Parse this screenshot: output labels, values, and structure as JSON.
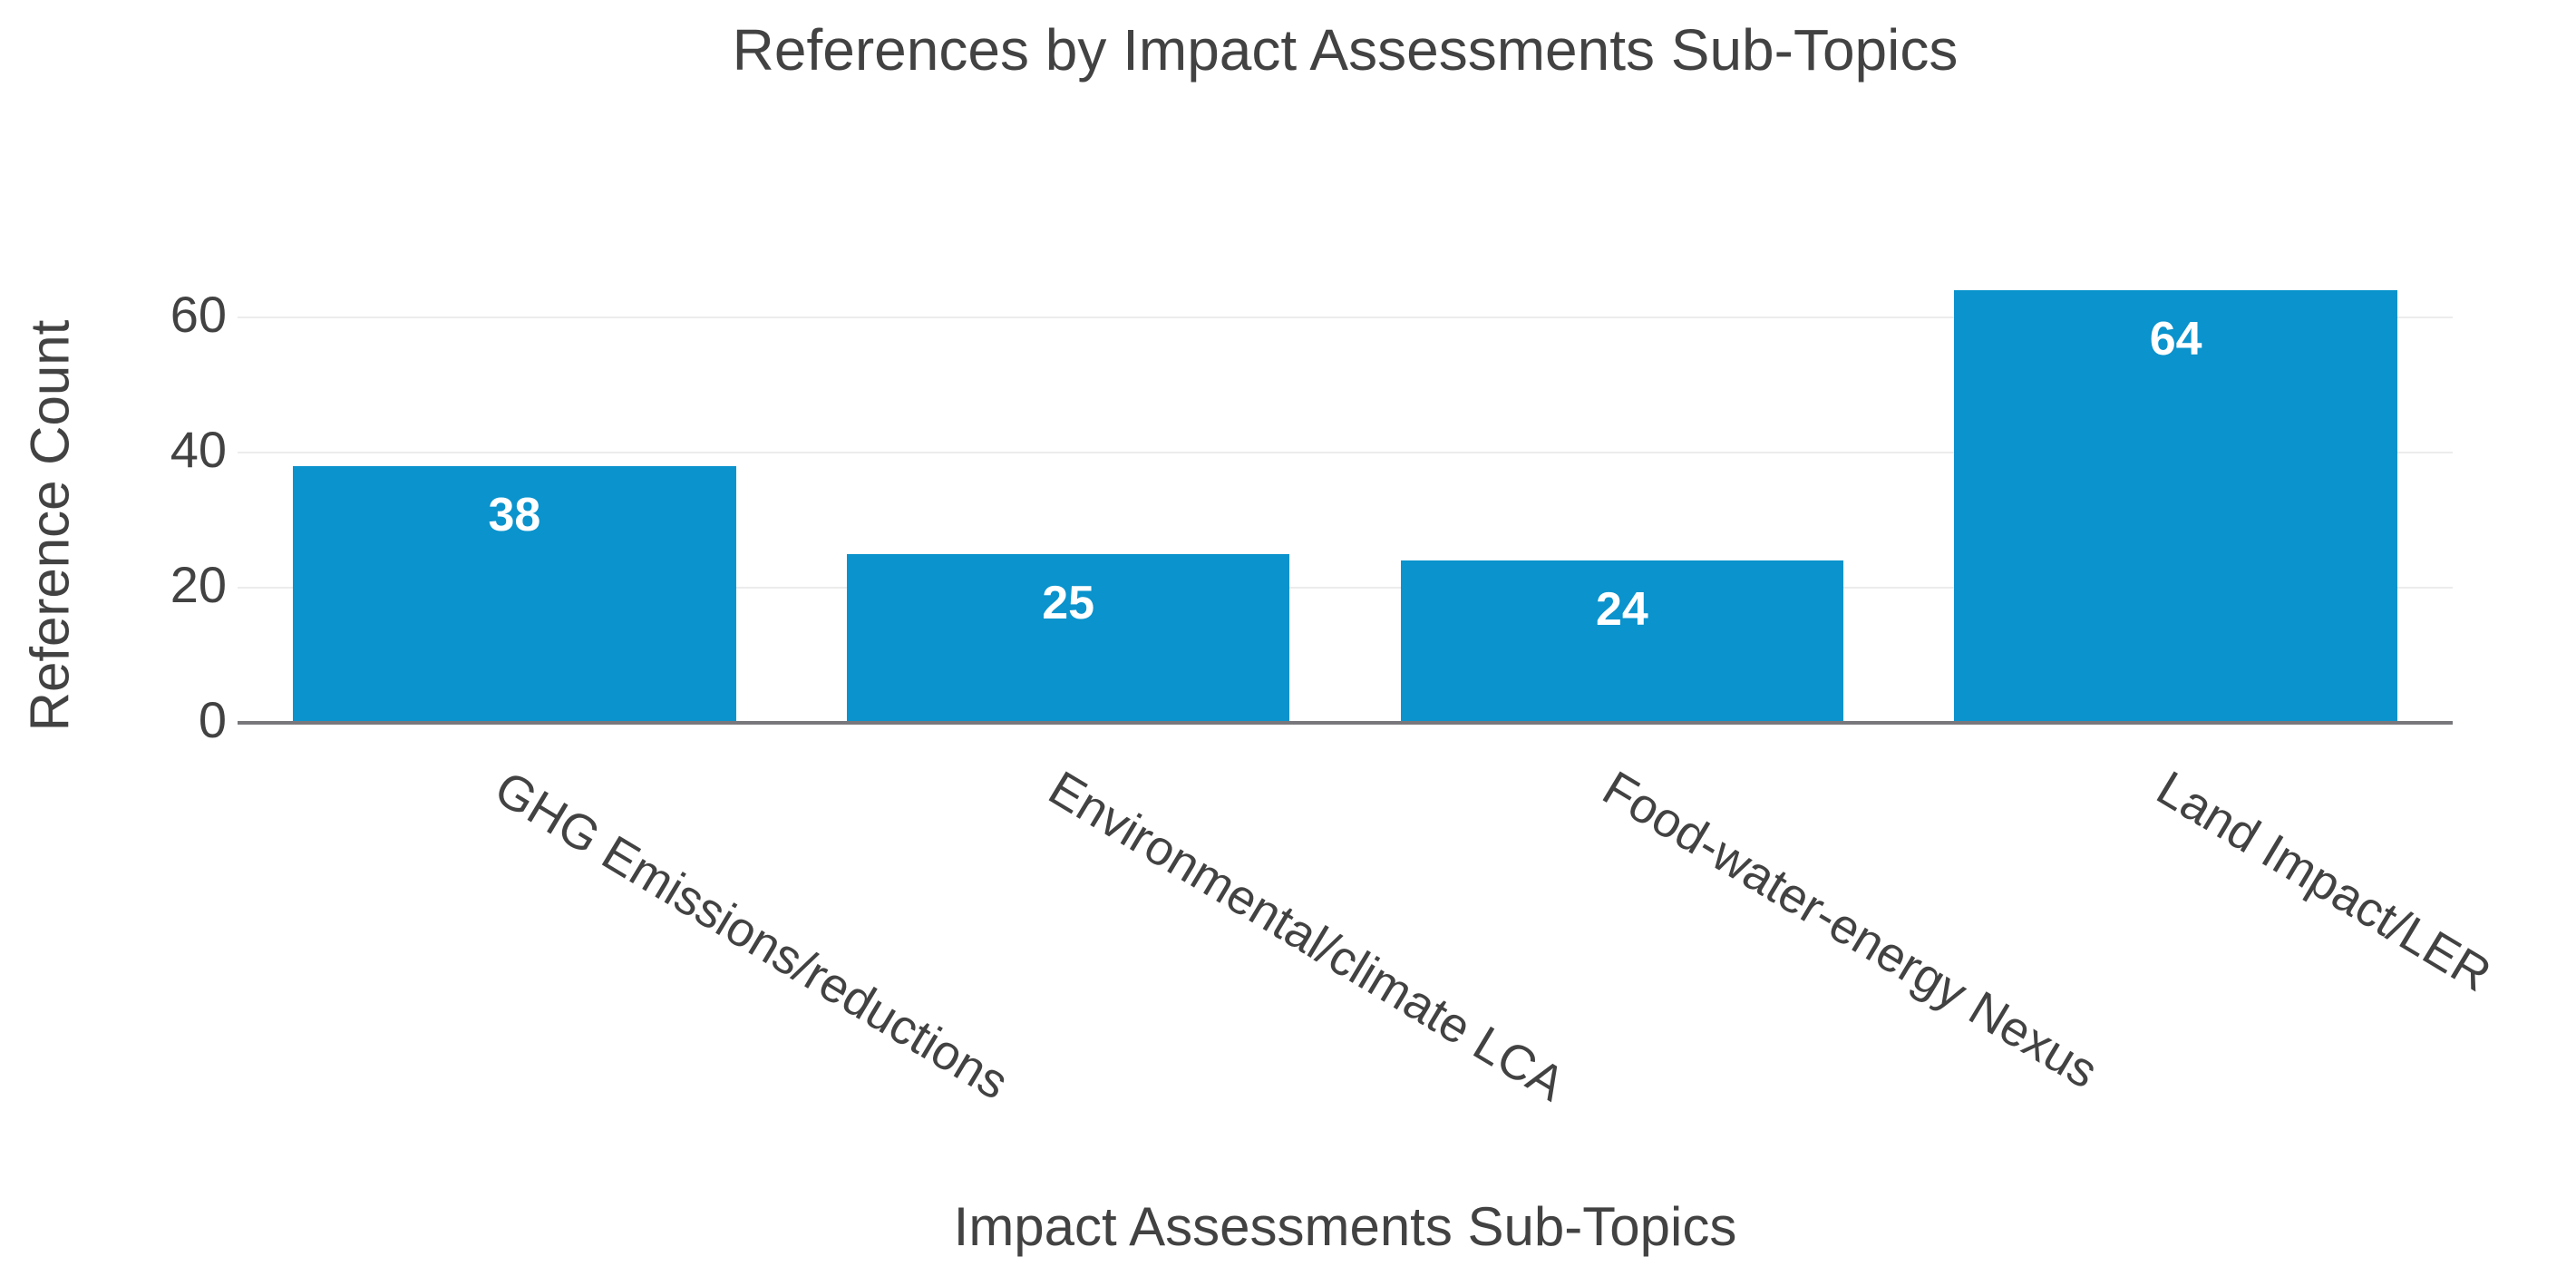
{
  "chart_data": {
    "type": "bar",
    "title": "References by Impact Assessments Sub-Topics",
    "xlabel": "Impact Assessments Sub-Topics",
    "ylabel": "Reference Count",
    "categories": [
      "GHG Emissions/reductions",
      "Environmental/climate LCA",
      "Food-water-energy Nexus",
      "Land Impact/LER"
    ],
    "values": [
      38,
      25,
      24,
      64
    ],
    "yticks": [
      0,
      20,
      40,
      60
    ],
    "ylim": [
      0,
      72
    ],
    "grid": true,
    "legend": false,
    "colors": {
      "bar": "#0a93cd",
      "bar_label": "#ffffff",
      "text": "#424242",
      "gridline": "#ececec",
      "axis_line": "#78787c",
      "background": "#ffffff"
    }
  }
}
